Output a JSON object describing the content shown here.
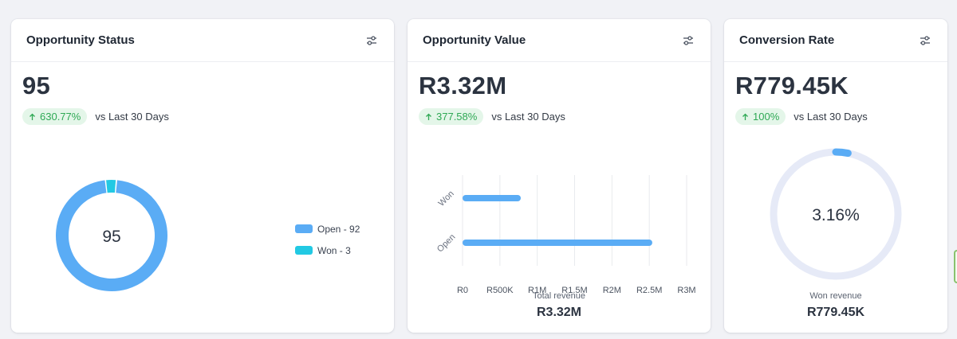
{
  "cards": {
    "status": {
      "title": "Opportunity Status",
      "value": "95",
      "trend_pct": "630.77%",
      "trend_text": "vs Last 30 Days",
      "donut_center": "95",
      "legend": [
        {
          "label": "Open - 92",
          "color": "#5aacf5"
        },
        {
          "label": "Won - 3",
          "color": "#22c9e3"
        }
      ]
    },
    "value": {
      "title": "Opportunity Value",
      "value": "R3.32M",
      "trend_pct": "377.58%",
      "trend_text": "vs Last 30 Days",
      "caption_label": "Total revenue",
      "caption_value": "R3.32M"
    },
    "conversion": {
      "title": "Conversion Rate",
      "value": "R779.45K",
      "trend_pct": "100%",
      "trend_text": "vs Last 30 Days",
      "gauge_center": "3.16%",
      "caption_label": "Won revenue",
      "caption_value": "R779.45K"
    }
  },
  "icons": {
    "settings": "sliders-icon",
    "trend": "arrow-up-icon"
  },
  "colors": {
    "accent_blue": "#5aacf5",
    "accent_cyan": "#22c9e3",
    "trend_green": "#2fa955",
    "trend_bg": "#e4f6e9",
    "gauge_track": "#e6eaf7"
  },
  "chart_data": [
    {
      "type": "pie",
      "variant": "donut",
      "categories": [
        "Open",
        "Won"
      ],
      "values": [
        92,
        3
      ],
      "legend": "right"
    },
    {
      "type": "bar",
      "orientation": "horizontal",
      "categories": [
        "Won",
        "Open"
      ],
      "values": [
        779450,
        2540000
      ],
      "xlabel": "Total revenue",
      "xlim": [
        0,
        3000000
      ],
      "xticks": [
        "R0",
        "R500K",
        "R1M",
        "R1.5M",
        "R2M",
        "R2.5M",
        "R3M"
      ],
      "grid": true
    },
    {
      "type": "pie",
      "variant": "radial-gauge",
      "values": [
        3.16
      ],
      "max": 100,
      "center_label": "3.16%"
    }
  ]
}
